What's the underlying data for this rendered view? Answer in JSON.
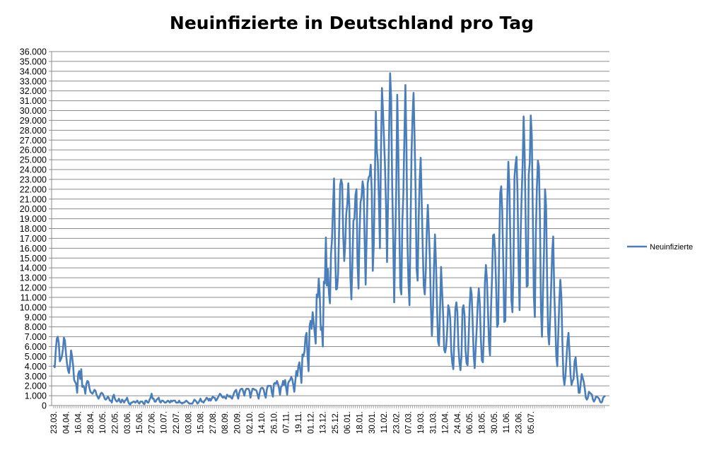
{
  "chart_data": {
    "type": "line",
    "title": "Neuinfizierte in Deutschland pro Tag",
    "xlabel": "",
    "ylabel": "",
    "ylim": [
      0,
      36000
    ],
    "y_tick_step": 1000,
    "y_tick_labels": [
      "0",
      "1.000",
      "2.000",
      "3.000",
      "4.000",
      "5.000",
      "6.000",
      "7.000",
      "8.000",
      "9.000",
      "10.000",
      "11.000",
      "12.000",
      "13.000",
      "14.000",
      "15.000",
      "16.000",
      "17.000",
      "18.000",
      "19.000",
      "20.000",
      "21.000",
      "22.000",
      "23.000",
      "24.000",
      "25.000",
      "26.000",
      "27.000",
      "28.000",
      "29.000",
      "30.000",
      "31.000",
      "32.000",
      "33.000",
      "34.000",
      "35.000",
      "36.000"
    ],
    "x_tick_labels": [
      "23.03.",
      "04.04.",
      "16.04.",
      "28.04.",
      "10.05.",
      "22.05.",
      "03.06.",
      "15.06.",
      "27.06.",
      "10.07.",
      "22.07.",
      "03.08.",
      "15.08.",
      "27.08.",
      "08.09.",
      "20.09.",
      "02.10.",
      "14.10.",
      "26.10.",
      "07.11.",
      "19.11.",
      "01.12.",
      "13.12.",
      "25.12.",
      "06.01.",
      "18.01.",
      "30.01.",
      "11.02.",
      "23.02.",
      "07.03.",
      "19.03.",
      "31.03.",
      "12.04.",
      "24.04.",
      "06.05.",
      "18.05.",
      "30.05.",
      "11.06.",
      "23.06.",
      "05.07."
    ],
    "x_label_spacing_days": 12,
    "grid": true,
    "legend_position": "right",
    "series": [
      {
        "name": "Neuinfizierte",
        "color": "#4a7ebb",
        "x_start": "23.03.",
        "x_end": "07.07.",
        "values": [
          4100,
          3900,
          5600,
          6800,
          7000,
          6300,
          4500,
          4700,
          5000,
          5700,
          6900,
          6600,
          5300,
          4300,
          3600,
          3300,
          4200,
          5600,
          5000,
          4100,
          2600,
          2400,
          2200,
          1300,
          3200,
          3500,
          2700,
          3700,
          1900,
          2000,
          1800,
          1200,
          2200,
          2500,
          2400,
          1800,
          1400,
          1300,
          1200,
          1400,
          1600,
          1500,
          1100,
          900,
          700,
          900,
          1200,
          1300,
          1200,
          1000,
          700,
          600,
          700,
          900,
          800,
          500,
          500,
          300,
          900,
          1100,
          700,
          500,
          400,
          500,
          700,
          400,
          300,
          600,
          500,
          300,
          500,
          600,
          800,
          400,
          200,
          100,
          300,
          300,
          400,
          400,
          300,
          400,
          500,
          300,
          200,
          400,
          400,
          400,
          200,
          150,
          500,
          500,
          300,
          300,
          600,
          800,
          1200,
          700,
          700,
          400,
          400,
          600,
          700,
          800,
          400,
          300,
          500,
          500,
          400,
          300,
          300,
          400,
          500,
          400,
          300,
          500,
          400,
          500,
          500,
          500,
          300,
          300,
          300,
          500,
          300,
          300,
          200,
          300,
          300,
          400,
          500,
          400,
          300,
          200,
          200,
          200,
          200,
          400,
          600,
          500,
          400,
          200,
          300,
          500,
          700,
          400,
          400,
          300,
          500,
          600,
          800,
          700,
          500,
          700,
          500,
          700,
          900,
          800,
          800,
          500,
          600,
          800,
          1000,
          1200,
          1100,
          900,
          800,
          900,
          800,
          700,
          1100,
          1000,
          900,
          1000,
          800,
          700,
          1000,
          1300,
          1500,
          1600,
          1100,
          700,
          1300,
          1600,
          1700,
          1700,
          1400,
          1000,
          1500,
          1700,
          1700,
          1700,
          1500,
          800,
          1300,
          1700,
          1700,
          1600,
          1600,
          1500,
          1100,
          700,
          1300,
          1700,
          1800,
          1800,
          1600,
          1100,
          800,
          1600,
          2000,
          2000,
          2000,
          2000,
          1300,
          900,
          2200,
          2300,
          2200,
          2500,
          2200,
          1800,
          1100,
          1900,
          2000,
          2500,
          2100,
          2600,
          1800,
          1100,
          2300,
          2500,
          2600,
          2900,
          2700,
          2100,
          1400,
          2500,
          3500,
          3000,
          4000,
          4400,
          3500,
          2300,
          5200,
          5000,
          5500,
          7000,
          7400,
          5000,
          3500,
          8100,
          8600,
          7800,
          9500,
          8500,
          7400,
          6300,
          11300,
          11000,
          12900,
          11200,
          7700,
          8000,
          6000,
          12600,
          12400,
          17100,
          12200,
          13900,
          11400,
          10400,
          15400,
          16900,
          20200,
          23100,
          16000,
          11800,
          11900,
          13500,
          18000,
          22400,
          23000,
          22500,
          17300,
          14700,
          16500,
          19500,
          20500,
          22600,
          20300,
          13100,
          10800,
          14500,
          18800,
          19000,
          21400,
          22000,
          14600,
          11900,
          17500,
          20700,
          21200,
          22800,
          22100,
          16900,
          12300,
          17200,
          22600,
          23200,
          23400,
          24500,
          21700,
          13700,
          16400,
          22700,
          29900,
          26000,
          24700,
          20900,
          16000,
          25500,
          32300,
          29900,
          27200,
          24300,
          20300,
          14600,
          21000,
          27800,
          33800,
          31300,
          22500,
          17100,
          10500,
          16500,
          22000,
          31600,
          26100,
          18300,
          12000,
          11300,
          18700,
          21500,
          27300,
          32600,
          26600,
          16700,
          12500,
          10200,
          17900,
          25600,
          29400,
          31800,
          27300,
          21700,
          13900,
          12700,
          18900,
          22900,
          25200,
          20700,
          16000,
          12200,
          11300,
          13700,
          17800,
          20400,
          17800,
          15000,
          10100,
          7100,
          9600,
          13900,
          17400,
          14500,
          10200,
          6500,
          6100,
          9800,
          14100,
          11600,
          9300,
          5700,
          5400,
          6000,
          7600,
          10200,
          9800,
          8800,
          5500,
          4300,
          3700,
          6800,
          9800,
          10500,
          9500,
          6000,
          4400,
          3600,
          5000,
          9800,
          10200,
          9200,
          5600,
          4300,
          4100,
          6700,
          10100,
          12000,
          11300,
          8400,
          5100,
          3800,
          5900,
          7900,
          10500,
          11900,
          10300,
          6900,
          4600,
          4400,
          7200,
          12500,
          14300,
          12800,
          9600,
          6400,
          5100,
          9900,
          13000,
          17300,
          17400,
          15600,
          12100,
          8000,
          8300,
          16000,
          21600,
          22300,
          19800,
          14600,
          8500,
          8600,
          14900,
          21000,
          24800,
          22300,
          16500,
          10700,
          9500,
          13900,
          23200,
          24500,
          25300,
          21600,
          14400,
          9700,
          17100,
          21200,
          24500,
          29400,
          25500,
          18700,
          12100,
          12200,
          23500,
          24700,
          29500,
          27400,
          19500,
          11100,
          9000,
          17500,
          22200,
          24900,
          24300,
          18900,
          9800,
          7000,
          11600,
          15700,
          22000,
          20300,
          12900,
          7400,
          6200,
          8900,
          12100,
          15600,
          17200,
          11600,
          8600,
          5100,
          4000,
          7400,
          10600,
          12800,
          11100,
          6500,
          2900,
          2100,
          3000,
          4700,
          6500,
          7400,
          5400,
          3100,
          2100,
          2500,
          2700,
          4500,
          4900,
          3500,
          2600,
          1300,
          1300,
          2300,
          3200,
          2800,
          2400,
          1700,
          800,
          600,
          800,
          1400,
          1300,
          1200,
          1100,
          600,
          400,
          600,
          900,
          900,
          800,
          700,
          400,
          300,
          400,
          800,
          900,
          1000
        ],
        "note_weekend_minimum": ""
      }
    ]
  }
}
